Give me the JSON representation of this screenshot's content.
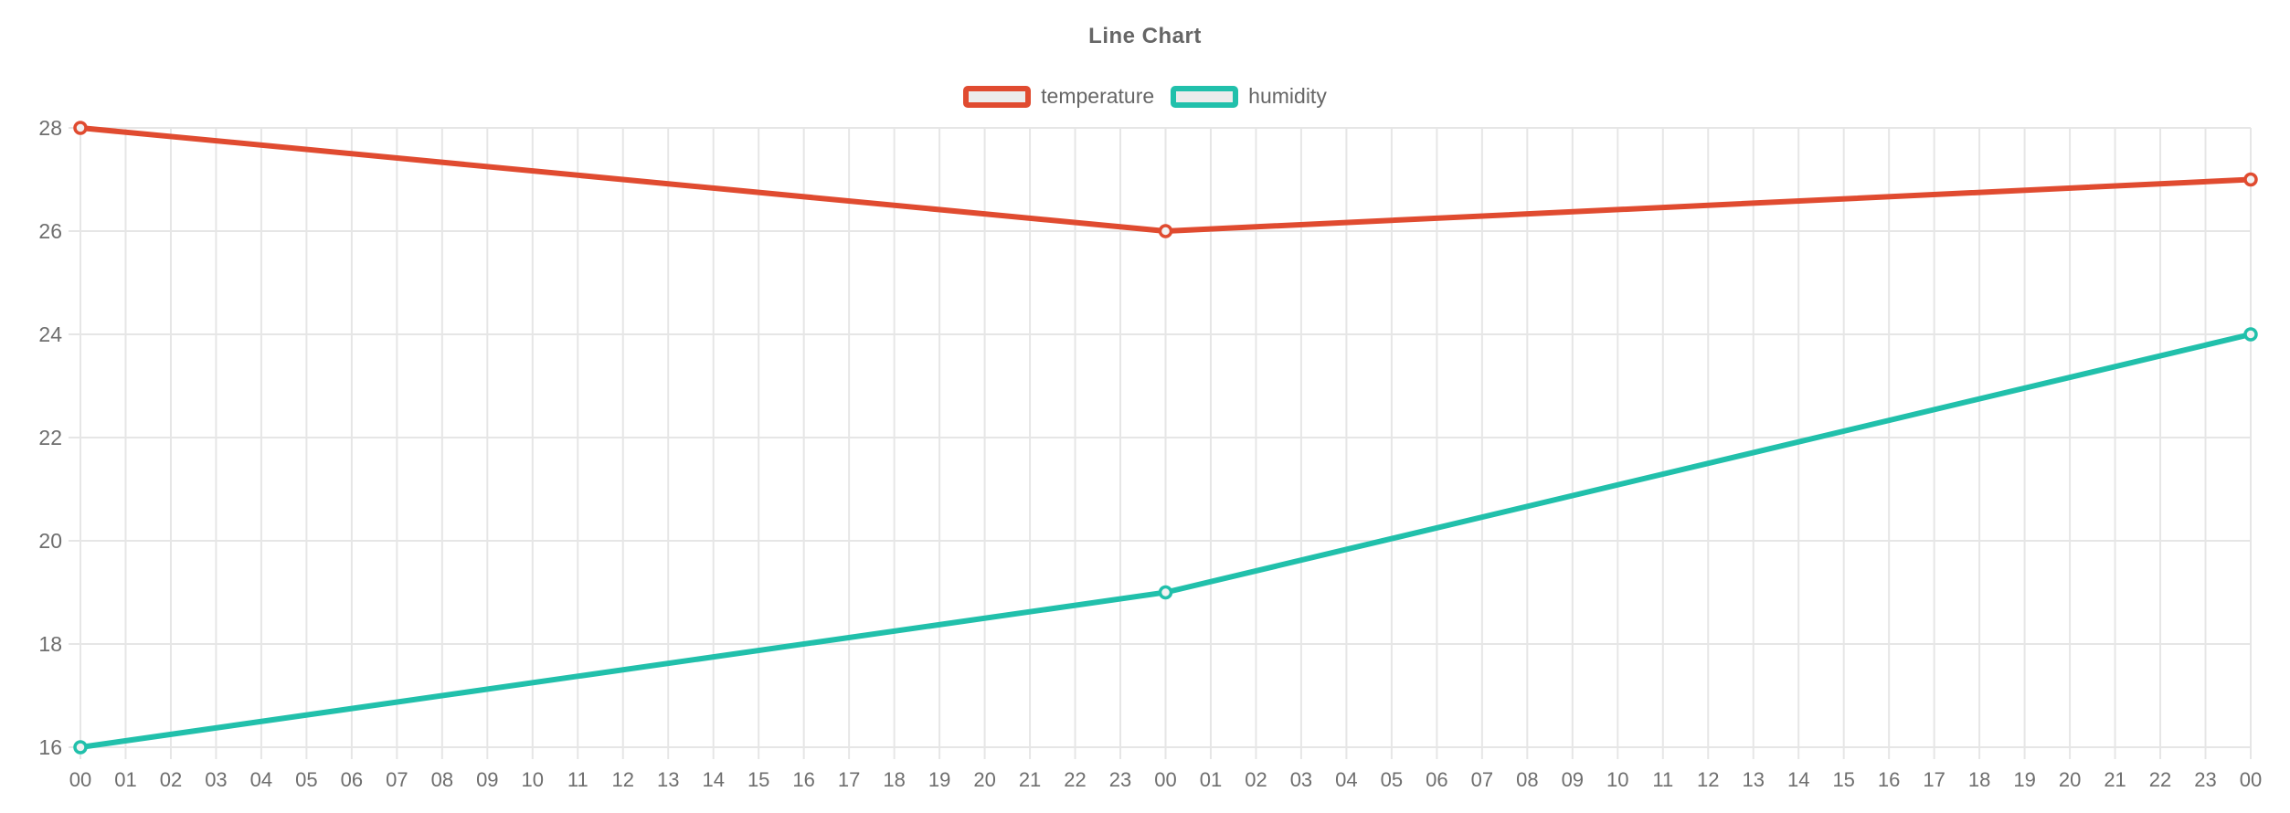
{
  "chart_data": {
    "type": "line",
    "title": "Line Chart",
    "categories": [
      "00",
      "01",
      "02",
      "03",
      "04",
      "05",
      "06",
      "07",
      "08",
      "09",
      "10",
      "11",
      "12",
      "13",
      "14",
      "15",
      "16",
      "17",
      "18",
      "19",
      "20",
      "21",
      "22",
      "23",
      "00",
      "01",
      "02",
      "03",
      "04",
      "05",
      "06",
      "07",
      "08",
      "09",
      "10",
      "11",
      "12",
      "13",
      "14",
      "15",
      "16",
      "17",
      "18",
      "19",
      "20",
      "21",
      "22",
      "23",
      "00"
    ],
    "series": [
      {
        "name": "temperature",
        "color": "#e04b30",
        "points": [
          {
            "x": 0,
            "y": 28
          },
          {
            "x": 24,
            "y": 26
          },
          {
            "x": 48,
            "y": 27
          }
        ]
      },
      {
        "name": "humidity",
        "color": "#21c0ab",
        "points": [
          {
            "x": 0,
            "y": 16
          },
          {
            "x": 24,
            "y": 19
          },
          {
            "x": 48,
            "y": 24
          }
        ]
      }
    ],
    "ylim": [
      16,
      28
    ],
    "y_ticks": [
      16,
      18,
      20,
      22,
      24,
      26,
      28
    ],
    "grid": true,
    "legend_position": "top",
    "style": {
      "grid_color": "#e6e6e6",
      "tick_text_color": "#6e6e6e",
      "title_text_color": "#666666",
      "marker_fill": "#f2f2f2",
      "legend_swatch_fill": "#ececec"
    }
  }
}
